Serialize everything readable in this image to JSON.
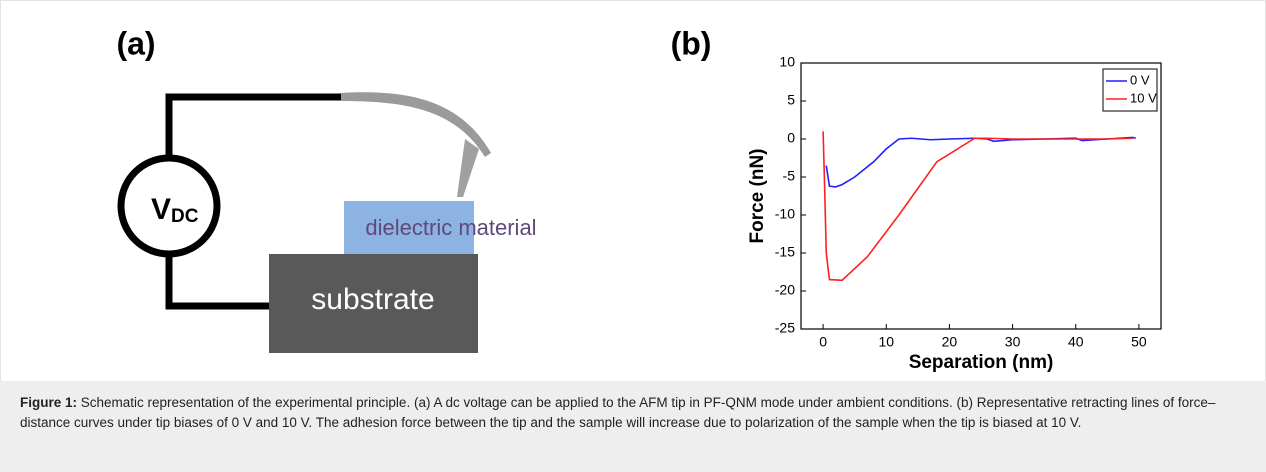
{
  "panel_a": {
    "label": "(a)",
    "source": "V",
    "source_sub": "DC",
    "layer": "dielectric material",
    "base": "substrate"
  },
  "chart_data": {
    "type": "line",
    "panel_label": "(b)",
    "x_label": "Separation (nm)",
    "y_label": "Force (nN)",
    "xlim": [
      -3.5,
      53.5
    ],
    "xticks": [
      0,
      10,
      20,
      30,
      40,
      50
    ],
    "ylim": [
      -25,
      10
    ],
    "yticks": [
      -25,
      -20,
      -15,
      -10,
      -5,
      0,
      5,
      10
    ],
    "legend": "top-right",
    "series": [
      {
        "name": "0 V",
        "color": "#1f1fff",
        "x": [
          0.5,
          1,
          2,
          3,
          5,
          8,
          10,
          12,
          14,
          17,
          20,
          24,
          26,
          27,
          30,
          35,
          40,
          41,
          45,
          49,
          49.5
        ],
        "values": [
          -3.5,
          -6.2,
          -6.3,
          -6,
          -5,
          -3,
          -1.3,
          0,
          0.1,
          -0.1,
          0,
          0.1,
          0,
          -0.3,
          -0.1,
          0,
          0.1,
          -0.2,
          0,
          0.2,
          0.1
        ]
      },
      {
        "name": "10 V",
        "color": "#ff1f1f",
        "x": [
          0,
          0.2,
          0.5,
          1,
          3,
          7,
          12,
          18,
          24,
          26,
          30,
          35,
          40,
          45,
          49
        ],
        "values": [
          1,
          -5,
          -15,
          -18.5,
          -18.6,
          -15.5,
          -10,
          -3,
          0.1,
          0.1,
          0,
          0,
          0,
          0,
          0.1
        ]
      }
    ]
  },
  "caption": {
    "label": "Figure 1:",
    "text": " Schematic representation of the experimental principle. (a) A dc voltage can be applied to the AFM tip in PF-QNM mode under ambient conditions. (b) Representative retracting lines of force–distance curves under tip biases of 0 V and 10 V. The adhesion force between the tip and the sample will increase due to polarization of the sample when the tip is biased at 10 V."
  }
}
